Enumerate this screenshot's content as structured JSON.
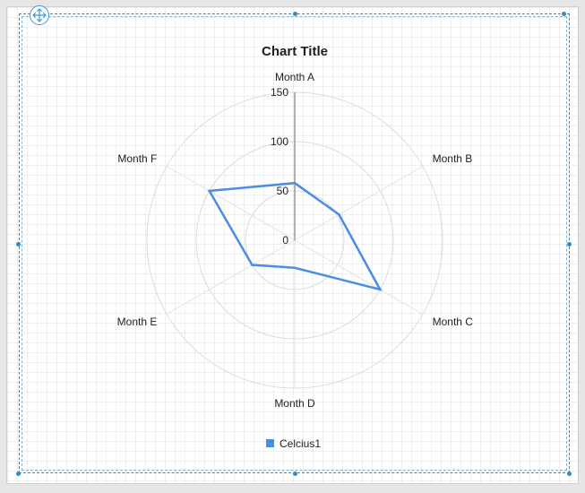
{
  "chart_data": {
    "type": "radar",
    "title": "Chart Title",
    "categories": [
      "Month A",
      "Month B",
      "Month C",
      "Month D",
      "Month E",
      "Month F"
    ],
    "series": [
      {
        "name": "Celcius1",
        "values": [
          58,
          52,
          100,
          28,
          50,
          100
        ],
        "color": "#4a8de6"
      }
    ],
    "r_ticks": [
      0,
      50,
      100,
      150
    ],
    "r_range": [
      0,
      150
    ],
    "grid": true,
    "legend_position": "bottom"
  },
  "colors": {
    "grid_ring": "#dcdcdc",
    "spoke": "#e2e2e2",
    "value_axis": "#9a9a9a",
    "selection": "#2a8fc7"
  },
  "icons": {
    "move_handle": "move-arrows-icon"
  }
}
